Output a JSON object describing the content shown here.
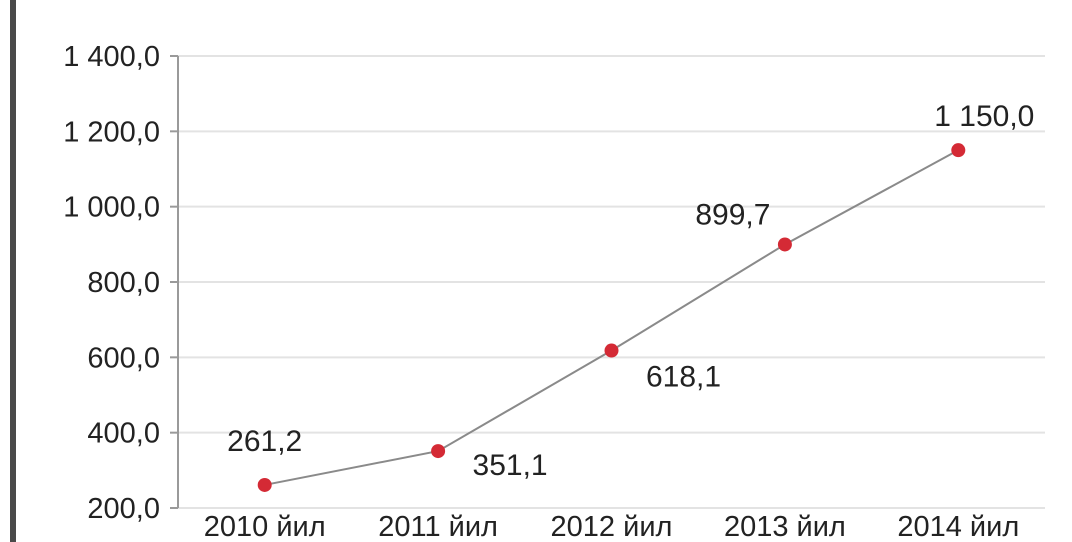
{
  "chart_data": {
    "type": "line",
    "title": "",
    "xlabel": "",
    "ylabel": "",
    "categories": [
      "2010 йил",
      "2011 йил",
      "2012 йил",
      "2013 йил",
      "2014 йил"
    ],
    "series": [
      {
        "values": [
          261.2,
          351.1,
          618.1,
          899.7,
          1150.0
        ],
        "labels": [
          "261,2",
          "351,1",
          "618,1",
          "899,7",
          "1 150,0"
        ],
        "line_color": "#8a8a8a",
        "marker_color": "#d42a35"
      }
    ],
    "ylim": [
      200,
      1400
    ],
    "yticks": [
      200,
      400,
      600,
      800,
      1000,
      1200,
      1400
    ],
    "ytick_labels": [
      "200,0",
      "400,0",
      "600,0",
      "800,0",
      "1 000,0",
      "1 200,0",
      "1 400,0"
    ],
    "grid": true,
    "grid_color": "#e3e3e3",
    "legend": "none"
  }
}
